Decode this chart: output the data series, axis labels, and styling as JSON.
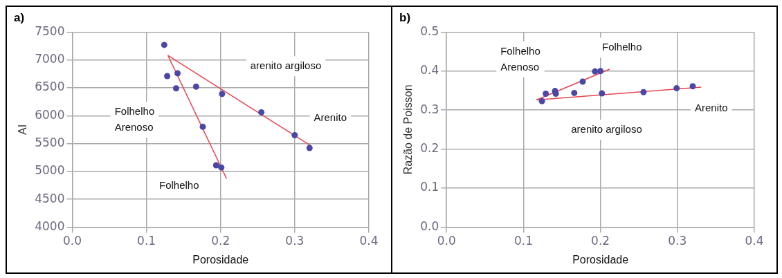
{
  "chart_data": [
    {
      "type": "scatter",
      "title": "a)",
      "xlabel": "Porosidade",
      "ylabel": "AI",
      "xlim": [
        0,
        0.4
      ],
      "xticks": [
        {
          "value": 0,
          "label": "0.0"
        },
        0.1,
        0.2,
        0.3,
        0.4
      ],
      "ylim": [
        4000,
        7500
      ],
      "yticks": [
        4000,
        4500,
        5000,
        5500,
        6000,
        6500,
        7000,
        7500
      ],
      "grid": true,
      "annotations": [
        "arenito argiloso",
        "Folhelho Arenoso",
        "Arenito",
        "Folhelho"
      ],
      "series": [
        {
          "type": "scatter",
          "color": "#4b47a6",
          "marker": "circle",
          "x": [
            0.124,
            0.128,
            0.142,
            0.14,
            0.167,
            0.202,
            0.255,
            0.176,
            0.3,
            0.32,
            0.194,
            0.201
          ],
          "values": [
            7270,
            6710,
            6760,
            6490,
            6520,
            6390,
            6060,
            5800,
            5650,
            5420,
            5110,
            5070
          ]
        },
        {
          "type": "line",
          "color": "#e8434f",
          "x": [
            0.129,
            0.322
          ],
          "values": [
            7080,
            5460
          ]
        },
        {
          "type": "line",
          "color": "#e8434f",
          "x": [
            0.129,
            0.208
          ],
          "values": [
            7080,
            4870
          ]
        }
      ]
    },
    {
      "type": "scatter",
      "title": "b)",
      "xlabel": "Porosidade",
      "ylabel": "Razão de Poisson",
      "xlim": [
        0,
        0.4
      ],
      "xticks": [
        {
          "value": 0,
          "label": "0.0"
        },
        0.1,
        0.2,
        0.3,
        0.4
      ],
      "ylim": [
        0,
        0.5
      ],
      "yticks": [
        {
          "value": 0,
          "label": "0.0"
        },
        0.1,
        0.2,
        0.3,
        0.4,
        0.5
      ],
      "grid": true,
      "annotations": [
        "Folhelho Arenoso",
        "Folhelho",
        "Arenito",
        "arenito argiloso"
      ],
      "series": [
        {
          "type": "scatter",
          "color": "#4b47a6",
          "marker": "circle",
          "x": [
            0.124,
            0.129,
            0.141,
            0.142,
            0.166,
            0.177,
            0.193,
            0.2,
            0.202,
            0.256,
            0.299,
            0.32
          ],
          "values": [
            0.323,
            0.342,
            0.349,
            0.342,
            0.344,
            0.373,
            0.399,
            0.4,
            0.343,
            0.346,
            0.356,
            0.361
          ]
        },
        {
          "type": "line",
          "color": "#e8434f",
          "x": [
            0.117,
            0.212
          ],
          "values": [
            0.326,
            0.405
          ]
        },
        {
          "type": "line",
          "color": "#e8434f",
          "x": [
            0.117,
            0.331
          ],
          "values": [
            0.326,
            0.359
          ]
        }
      ]
    }
  ]
}
